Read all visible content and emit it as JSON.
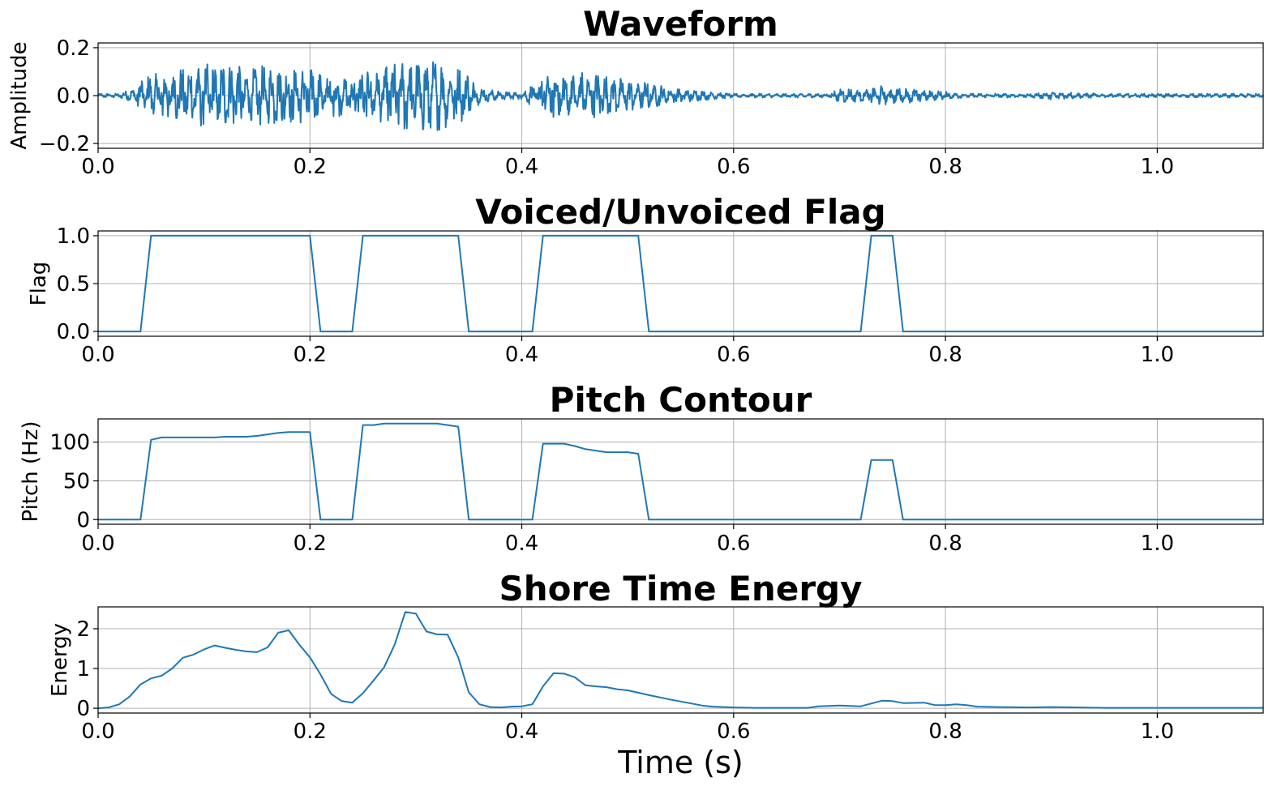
{
  "chart_data": [
    {
      "type": "line",
      "title": "Waveform",
      "ylabel": "Amplitude",
      "xlabel": "",
      "xlim": [
        0,
        1.1
      ],
      "ylim": [
        -0.22,
        0.22
      ],
      "xticks": [
        0.0,
        0.2,
        0.4,
        0.6,
        0.8,
        1.0
      ],
      "xtick_labels": [
        "0.0",
        "0.2",
        "0.4",
        "0.6",
        "0.8",
        "1.0"
      ],
      "yticks": [
        -0.2,
        0.0,
        0.2
      ],
      "ytick_labels": [
        "−0.2",
        "0.0",
        "0.2"
      ],
      "grid": true,
      "color": "#1f77b4",
      "envelope": {
        "x": [
          0.0,
          0.02,
          0.035,
          0.04,
          0.06,
          0.08,
          0.1,
          0.12,
          0.14,
          0.16,
          0.18,
          0.2,
          0.22,
          0.24,
          0.25,
          0.27,
          0.29,
          0.31,
          0.33,
          0.35,
          0.36,
          0.38,
          0.4,
          0.42,
          0.44,
          0.46,
          0.48,
          0.5,
          0.52,
          0.54,
          0.56,
          0.58,
          0.6,
          0.65,
          0.69,
          0.7,
          0.72,
          0.74,
          0.76,
          0.78,
          0.8,
          0.82,
          0.85,
          0.88,
          0.9,
          0.95,
          1.0,
          1.1
        ],
        "amplitude": [
          0.01,
          0.01,
          0.04,
          0.09,
          0.12,
          0.14,
          0.16,
          0.16,
          0.15,
          0.15,
          0.15,
          0.14,
          0.11,
          0.09,
          0.12,
          0.15,
          0.18,
          0.19,
          0.17,
          0.12,
          0.04,
          0.02,
          0.02,
          0.1,
          0.13,
          0.12,
          0.1,
          0.08,
          0.07,
          0.04,
          0.03,
          0.02,
          0.01,
          0.01,
          0.01,
          0.04,
          0.03,
          0.05,
          0.04,
          0.03,
          0.02,
          0.01,
          0.01,
          0.01,
          0.02,
          0.01,
          0.01,
          0.01
        ]
      }
    },
    {
      "type": "line",
      "title": "Voiced/Unvoiced Flag",
      "ylabel": "Flag",
      "xlabel": "",
      "xlim": [
        0,
        1.1
      ],
      "ylim": [
        -0.05,
        1.05
      ],
      "xticks": [
        0.0,
        0.2,
        0.4,
        0.6,
        0.8,
        1.0
      ],
      "xtick_labels": [
        "0.0",
        "0.2",
        "0.4",
        "0.6",
        "0.8",
        "1.0"
      ],
      "yticks": [
        0.0,
        0.5,
        1.0
      ],
      "ytick_labels": [
        "0.0",
        "0.5",
        "1.0"
      ],
      "grid": true,
      "color": "#1f77b4",
      "x": [
        0.0,
        0.04,
        0.05,
        0.2,
        0.21,
        0.24,
        0.25,
        0.34,
        0.35,
        0.41,
        0.42,
        0.51,
        0.52,
        0.72,
        0.73,
        0.75,
        0.76,
        1.1
      ],
      "y": [
        0,
        0,
        1,
        1,
        0,
        0,
        1,
        1,
        0,
        0,
        1,
        1,
        0,
        0,
        1,
        1,
        0,
        0
      ]
    },
    {
      "type": "line",
      "title": "Pitch Contour",
      "ylabel": "Pitch (Hz)",
      "xlabel": "",
      "xlim": [
        0,
        1.1
      ],
      "ylim": [
        -6,
        130
      ],
      "xticks": [
        0.0,
        0.2,
        0.4,
        0.6,
        0.8,
        1.0
      ],
      "xtick_labels": [
        "0.0",
        "0.2",
        "0.4",
        "0.6",
        "0.8",
        "1.0"
      ],
      "yticks": [
        0,
        50,
        100
      ],
      "ytick_labels": [
        "0",
        "50",
        "100"
      ],
      "grid": true,
      "color": "#1f77b4",
      "x": [
        0.0,
        0.04,
        0.05,
        0.06,
        0.08,
        0.1,
        0.11,
        0.12,
        0.14,
        0.15,
        0.16,
        0.17,
        0.18,
        0.19,
        0.2,
        0.21,
        0.24,
        0.25,
        0.26,
        0.27,
        0.28,
        0.3,
        0.32,
        0.33,
        0.34,
        0.35,
        0.41,
        0.42,
        0.43,
        0.44,
        0.45,
        0.46,
        0.47,
        0.48,
        0.49,
        0.5,
        0.51,
        0.52,
        0.72,
        0.73,
        0.75,
        0.76,
        1.1
      ],
      "y": [
        0,
        0,
        103,
        106,
        106,
        106,
        106,
        107,
        107,
        108,
        110,
        112,
        113,
        113,
        113,
        0,
        0,
        122,
        122,
        124,
        124,
        124,
        124,
        122,
        120,
        0,
        0,
        98,
        98,
        98,
        95,
        91,
        89,
        87,
        87,
        87,
        85,
        0,
        0,
        77,
        77,
        0,
        0
      ]
    },
    {
      "type": "line",
      "title": "Shore Time Energy",
      "ylabel": "Energy",
      "xlabel": "Time (s)",
      "xlim": [
        0,
        1.1
      ],
      "ylim": [
        -0.12,
        2.55
      ],
      "xticks": [
        0.0,
        0.2,
        0.4,
        0.6,
        0.8,
        1.0
      ],
      "xtick_labels": [
        "0.0",
        "0.2",
        "0.4",
        "0.6",
        "0.8",
        "1.0"
      ],
      "yticks": [
        0,
        1,
        2
      ],
      "ytick_labels": [
        "0",
        "1",
        "2"
      ],
      "grid": true,
      "color": "#1f77b4",
      "x": [
        0.0,
        0.01,
        0.02,
        0.03,
        0.04,
        0.05,
        0.06,
        0.07,
        0.08,
        0.09,
        0.1,
        0.11,
        0.12,
        0.13,
        0.14,
        0.15,
        0.16,
        0.17,
        0.18,
        0.19,
        0.2,
        0.21,
        0.22,
        0.23,
        0.24,
        0.25,
        0.26,
        0.27,
        0.28,
        0.29,
        0.3,
        0.31,
        0.32,
        0.33,
        0.34,
        0.35,
        0.36,
        0.37,
        0.38,
        0.39,
        0.4,
        0.41,
        0.42,
        0.43,
        0.44,
        0.45,
        0.46,
        0.47,
        0.48,
        0.49,
        0.5,
        0.52,
        0.54,
        0.56,
        0.57,
        0.58,
        0.6,
        0.62,
        0.65,
        0.67,
        0.68,
        0.7,
        0.72,
        0.74,
        0.75,
        0.76,
        0.78,
        0.79,
        0.8,
        0.81,
        0.82,
        0.83,
        0.85,
        0.88,
        0.9,
        0.95,
        1.0,
        1.1
      ],
      "y": [
        0.0,
        0.02,
        0.1,
        0.3,
        0.6,
        0.75,
        0.82,
        1.0,
        1.27,
        1.35,
        1.48,
        1.58,
        1.52,
        1.47,
        1.43,
        1.41,
        1.53,
        1.9,
        1.96,
        1.6,
        1.28,
        0.85,
        0.36,
        0.18,
        0.14,
        0.38,
        0.7,
        1.03,
        1.6,
        2.42,
        2.38,
        1.93,
        1.86,
        1.85,
        1.28,
        0.4,
        0.1,
        0.03,
        0.02,
        0.04,
        0.05,
        0.1,
        0.55,
        0.88,
        0.87,
        0.78,
        0.58,
        0.55,
        0.53,
        0.48,
        0.45,
        0.33,
        0.22,
        0.12,
        0.07,
        0.04,
        0.02,
        0.01,
        0.01,
        0.01,
        0.05,
        0.07,
        0.05,
        0.19,
        0.18,
        0.13,
        0.14,
        0.08,
        0.08,
        0.1,
        0.08,
        0.04,
        0.03,
        0.02,
        0.03,
        0.01,
        0.01,
        0.01
      ]
    }
  ]
}
